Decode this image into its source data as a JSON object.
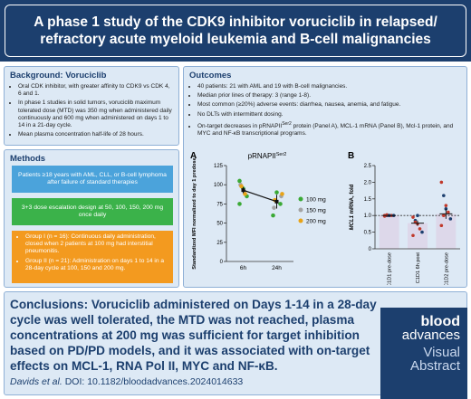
{
  "header": {
    "title": "A phase 1 study of the CDK9 inhibitor voruciclib in relapsed/ refractory acute myeloid leukemia and B-cell malignancies"
  },
  "background": {
    "heading": "Background: Voruciclib",
    "bullets": [
      "Oral CDK inhibitor, with greater affinity to CDK9 vs CDK 4, 6 and 1.",
      "In phase 1 studies in solid tumors, voruciclib maximum tolerated dose (MTD) was 350 mg when administered daily continuously and 600 mg when administered on days 1 to 14 in a 21-day cycle.",
      "Mean plasma concentration half-life of 28 hours."
    ]
  },
  "methods": {
    "heading": "Methods",
    "cards": [
      "Patients ≥18 years with AML, CLL, or B-cell lymphoma after failure of standard therapies",
      "3+3 dose escalation design at 50, 100, 150, 200 mg once daily"
    ],
    "groups": [
      "Group I (n = 16): Continuous daily administration, closed when 2 patients at 100 mg had interstitial pneumonitis.",
      "Group II (n = 21): Administration on days 1 to 14 in a 28-day cycle at 100, 150 and 200 mg."
    ]
  },
  "outcomes": {
    "heading": "Outcomes",
    "bullets": [
      "40 patients: 21 with AML and 19 with B-cell malignancies.",
      "Median prior lines of therapy: 3 (range 1-8).",
      "Most common (≥20%) adverse events: diarrhea, nausea, anemia, and fatigue.",
      "No DLTs with intermittent dosing."
    ],
    "target_bullet": {
      "before": "On-target decreases in pRNAPII",
      "sup": "Ser2",
      "after": " protein (Panel A), MCL-1 mRNA (Panel B), Mcl-1 protein, and MYC and NF-κB transcriptional programs."
    },
    "panel_a": {
      "letter": "A",
      "chart_data": {
        "type": "scatter",
        "title": "pRNAPII",
        "title_sup": "Ser2",
        "ylabel": "Standardized MFI normalized to day 1 predose",
        "categories": [
          "6h",
          "24h"
        ],
        "ylim": [
          0,
          125
        ],
        "yticks": [
          0,
          25,
          50,
          75,
          100,
          125
        ],
        "series": [
          {
            "name": "100 mg",
            "color": "#3aa935",
            "x": [
              "6h",
              "6h",
              "6h",
              "6h",
              "24h",
              "24h",
              "24h"
            ],
            "values": [
              105,
              95,
              85,
              75,
              90,
              75,
              60
            ]
          },
          {
            "name": "150 mg",
            "color": "#a3a3a3",
            "x": [
              "6h",
              "6h",
              "24h",
              "24h"
            ],
            "values": [
              100,
              92,
              85,
              70
            ]
          },
          {
            "name": "200 mg",
            "color": "#e8a317",
            "x": [
              "6h",
              "6h",
              "24h",
              "24h"
            ],
            "values": [
              98,
              88,
              88,
              80
            ]
          }
        ],
        "mean": [
          93,
          78
        ],
        "error": [
          4,
          9
        ]
      }
    },
    "panel_b": {
      "letter": "B",
      "chart_data": {
        "type": "bar",
        "ylabel_italic": "MCL1",
        "ylabel": " mRNA, fold",
        "categories": [
          "C1D1 pre-dose",
          "C1D1 6h post",
          "C1D2 pre-dose"
        ],
        "values": [
          1.0,
          0.77,
          1.05
        ],
        "error": [
          0.02,
          0.08,
          0.15
        ],
        "color": "#ddd8ea",
        "point_color": "#c0392b",
        "reference_line": 1,
        "points": [
          [
            1,
            1,
            1,
            1,
            1,
            0.98,
            1.02,
            1
          ],
          [
            0.95,
            0.85,
            0.75,
            0.6,
            0.5,
            0.4,
            0.8,
            1
          ],
          [
            2,
            1.6,
            1.3,
            1.1,
            0.9,
            0.7,
            1,
            1.2
          ]
        ],
        "ylim": [
          0,
          2.5
        ],
        "yticks": [
          0,
          0.5,
          {
            "value": 1,
            "label": "1.0"
          },
          1.5,
          {
            "value": 2,
            "label": "2.0"
          },
          2.5
        ]
      }
    }
  },
  "conclusions": {
    "label": "Conclusions:",
    "text": " Voruciclib administered on Days 1-14 in a 28-day cycle was well tolerated, the MTD was not reached, plasma concentrations at 200 mg was sufficient for target inhibition based on PD/PD models, and it was associated with on-target effects on MCL-1, RNA Pol II, MYC and NF-κB."
  },
  "citation": {
    "authors": "Davids et al.",
    "doi": "DOI: 10.1182/bloodadvances.2024014633"
  },
  "logo": {
    "line1": "blood",
    "line2": "advances",
    "line3": "Visual",
    "line4": "Abstract"
  }
}
